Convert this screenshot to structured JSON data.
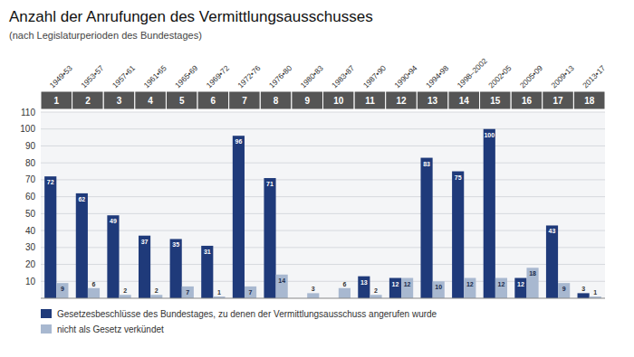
{
  "chart_data": {
    "type": "bar",
    "title": "Anzahl der Anrufungen des Vermittlungsausschusses",
    "subtitle": "(nach Legislaturperioden des Bundestages)",
    "categories": [
      "1949•53",
      "1953•57",
      "1957•61",
      "1961•65",
      "1965•69",
      "1969•72",
      "1972•76",
      "1976•80",
      "1980•83",
      "1983•87",
      "1987•90",
      "1990•94",
      "1994•98",
      "1998–2002",
      "2002•05",
      "2005•09",
      "2009•13",
      "2013•17"
    ],
    "annotations": [
      "1",
      "2",
      "3",
      "4",
      "5",
      "6",
      "7",
      "8",
      "9",
      "10",
      "11",
      "12",
      "13",
      "14",
      "15",
      "16",
      "17",
      "18"
    ],
    "series": [
      {
        "name": "Gesetzesbeschlüsse des Bundestages, zu denen der Vermittlungsausschuss angerufen wurde",
        "color": "#1f3a7a",
        "values": [
          72,
          62,
          49,
          37,
          35,
          31,
          96,
          71,
          0,
          0,
          13,
          12,
          83,
          75,
          100,
          12,
          43,
          3
        ]
      },
      {
        "name": "nicht als Gesetz verkündet",
        "color": "#a8b8d0",
        "values": [
          9,
          6,
          2,
          2,
          7,
          1,
          7,
          14,
          3,
          6,
          2,
          12,
          10,
          12,
          12,
          18,
          9,
          1
        ]
      }
    ],
    "ylim": [
      0,
      110
    ],
    "yticks": [
      10,
      20,
      30,
      40,
      50,
      60,
      70,
      80,
      90,
      100,
      110
    ],
    "grid": true,
    "data_labels": true,
    "legend": "bottom"
  }
}
